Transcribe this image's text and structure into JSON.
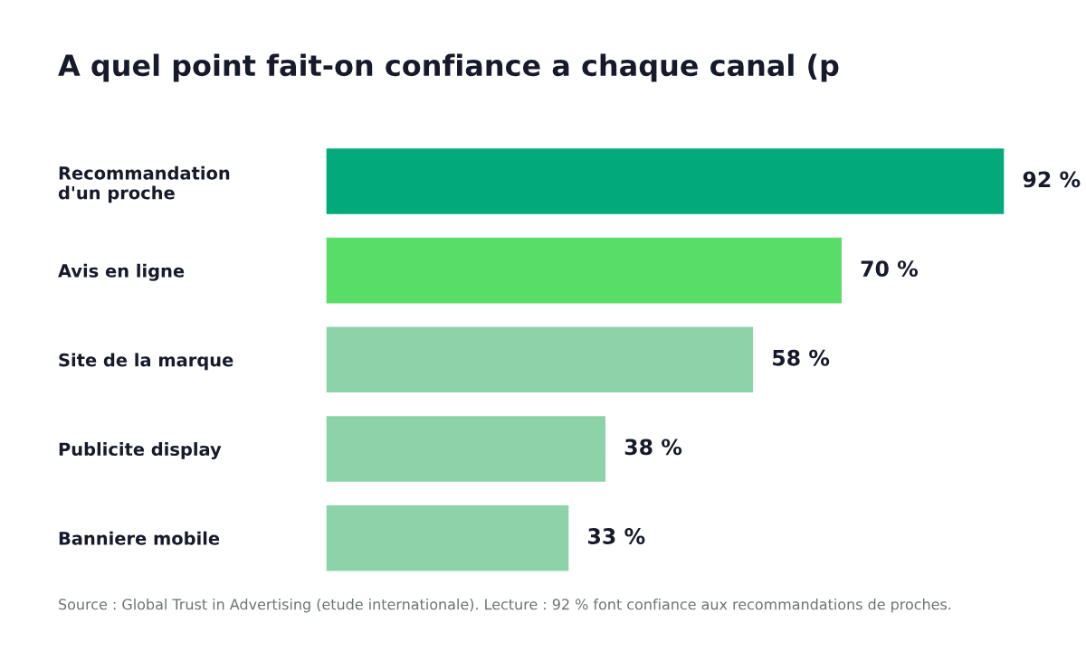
{
  "chart_data": {
    "type": "bar",
    "orientation": "horizontal",
    "title": "A quel point fait-on confiance a chaque canal (p",
    "categories": [
      "Recommandation d'un proche",
      "Avis en ligne",
      "Site de la marque",
      "Publicite display",
      "Banniere mobile"
    ],
    "values": [
      92,
      70,
      58,
      38,
      33
    ],
    "colors": [
      "#02a97a",
      "#58dd68",
      "#8dd3aa",
      "#8dd3aa",
      "#8dd3aa"
    ],
    "value_labels": [
      "92 %",
      "70 %",
      "58 %",
      "38 %",
      "33 %"
    ],
    "grid": false,
    "legend": false,
    "tick_labels": "y",
    "annotations": [
      "Source : Global Trust in Advertising (etude internationale). Lecture : 92 % font confiance aux recommandations de proches."
    ]
  }
}
